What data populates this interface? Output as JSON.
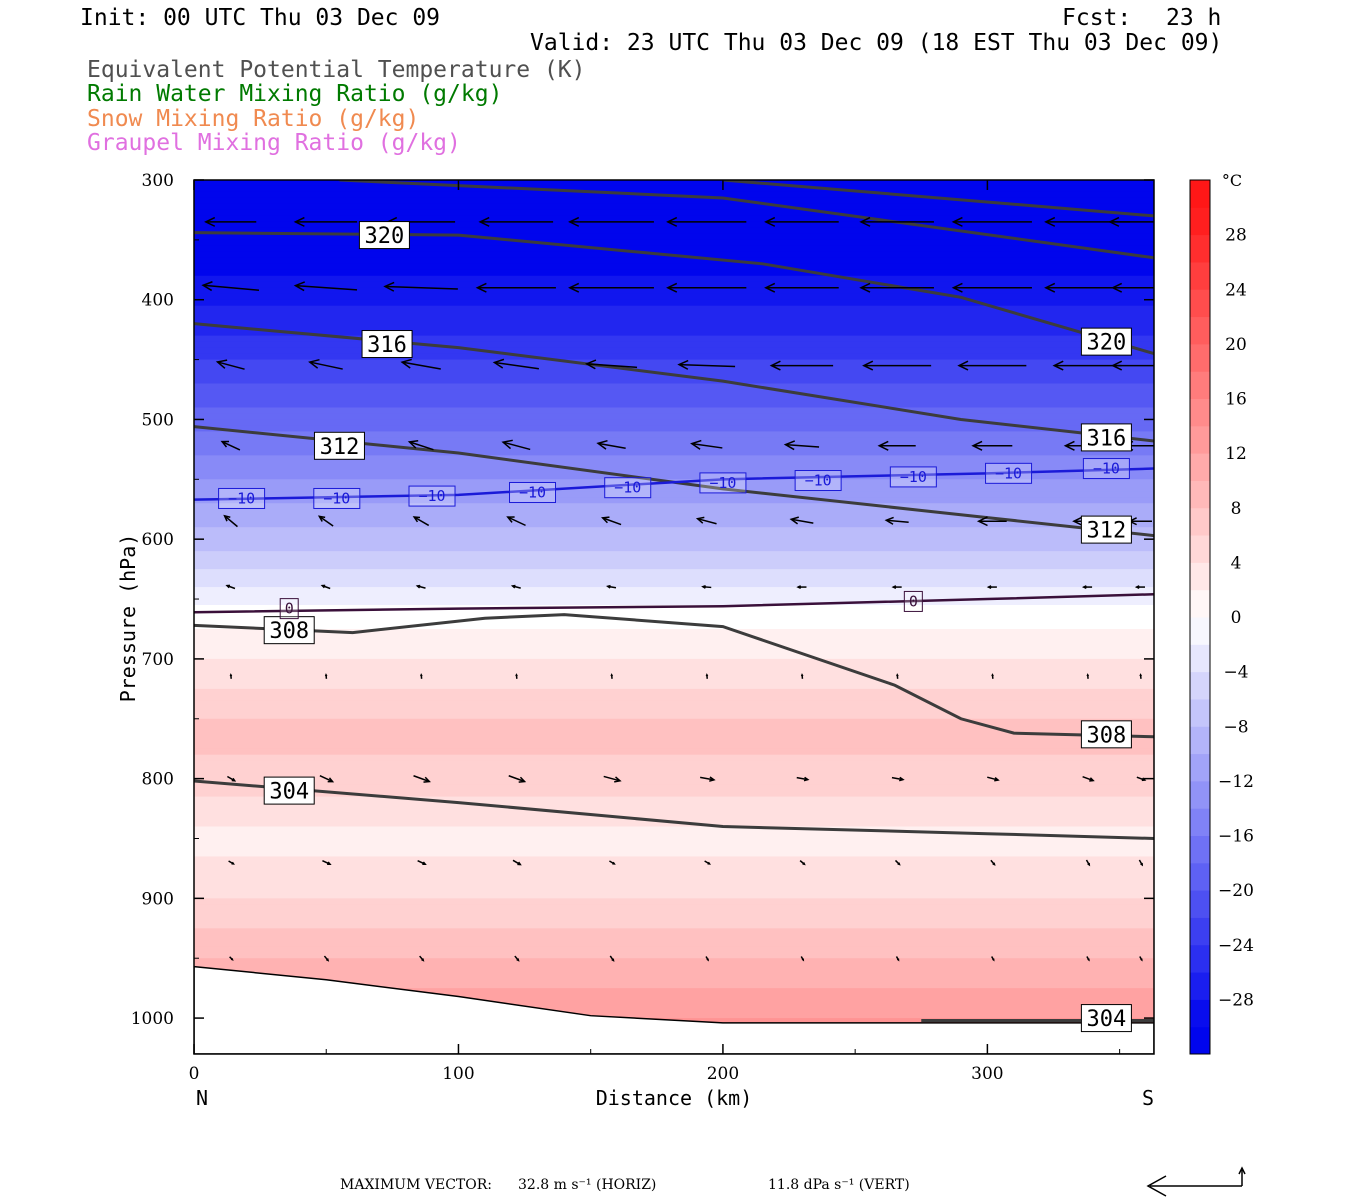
{
  "header": {
    "init": "Init: 00 UTC Thu 03 Dec 09",
    "fcst_label": "Fcst:",
    "fcst_value": "23 h",
    "valid": "Valid: 23 UTC Thu 03 Dec 09 (18 EST Thu 03 Dec 09)"
  },
  "legend": [
    {
      "text": "Equivalent Potential Temperature (K)",
      "color": "#505050"
    },
    {
      "text": "Rain Water Mixing Ratio (g/kg)",
      "color": "#007a00"
    },
    {
      "text": "Snow Mixing Ratio (g/kg)",
      "color": "#f08a50"
    },
    {
      "text": "Graupel Mixing Ratio (g/kg)",
      "color": "#e070e0"
    }
  ],
  "footer": {
    "max_vector_label": "MAXIMUM VECTOR:",
    "horiz": "32.8 m s⁻¹ (HORIZ)",
    "vert": "11.8 dPa s⁻¹ (VERT)"
  },
  "chart_data": {
    "type": "cross-section",
    "xlabel": "Distance (km)",
    "ylabel": "Pressure (hPa)",
    "xlim": [
      0,
      363
    ],
    "ylim": [
      1030,
      300
    ],
    "x_ticks": [
      0,
      100,
      200,
      300
    ],
    "y_ticks": [
      300,
      400,
      500,
      600,
      700,
      800,
      900,
      1000
    ],
    "x_end_labels": {
      "left": "N",
      "right": "S"
    },
    "colorbar": {
      "unit": "°C",
      "levels": [
        -32,
        -30,
        -28,
        -26,
        -24,
        -22,
        -20,
        -18,
        -16,
        -14,
        -12,
        -10,
        -8,
        -6,
        -4,
        -2,
        0,
        2,
        4,
        6,
        8,
        10,
        12,
        14,
        16,
        18,
        20,
        22,
        24,
        26,
        28,
        30,
        32
      ],
      "tick_labels": [
        28,
        24,
        20,
        16,
        12,
        8,
        4,
        0,
        -4,
        -8,
        -12,
        -16,
        -20,
        -24,
        -28
      ]
    },
    "temperature_field": {
      "note_points": "pressure (hPa) vs temperature (°C)",
      "profile_p": [
        300,
        330,
        380,
        430,
        480,
        520,
        560,
        600,
        640,
        660,
        700,
        760,
        800,
        850,
        900,
        950,
        1000
      ],
      "profile_T": [
        -31,
        -31,
        -29,
        -25,
        -20,
        -16,
        -12,
        -8,
        -3,
        0,
        3,
        8,
        6,
        2,
        5,
        9,
        13
      ]
    },
    "theta_e_contours": [
      {
        "label": "320",
        "x": [
          0,
          100,
          215,
          290,
          363
        ],
        "p": [
          344,
          346,
          370,
          398,
          445
        ]
      },
      {
        "label": "320",
        "x": [
          55,
          200,
          363
        ],
        "p": [
          300,
          315,
          365
        ]
      },
      {
        "label": "320",
        "x": [
          200,
          363
        ],
        "p": [
          300,
          330
        ]
      },
      {
        "label": "316",
        "x": [
          0,
          100,
          200,
          290,
          363
        ],
        "p": [
          420,
          440,
          468,
          500,
          518
        ]
      },
      {
        "label": "312",
        "x": [
          0,
          100,
          200,
          300,
          363
        ],
        "p": [
          506,
          528,
          558,
          582,
          597
        ]
      },
      {
        "label": "308",
        "x": [
          0,
          60,
          110,
          140,
          200,
          265,
          290,
          310,
          363
        ],
        "p": [
          672,
          678,
          666,
          663,
          673,
          722,
          750,
          762,
          765
        ]
      },
      {
        "label": "304",
        "x": [
          0,
          100,
          200,
          300,
          363
        ],
        "p": [
          802,
          820,
          840,
          846,
          850
        ]
      },
      {
        "label": "304",
        "x": [
          275,
          363
        ],
        "p": [
          1002,
          1002
        ]
      }
    ],
    "isotherm_contours": [
      {
        "label": "-10",
        "color": "#1a1ad8",
        "x": [
          0,
          100,
          200,
          300,
          363
        ],
        "p": [
          567,
          563,
          550,
          545,
          541
        ]
      },
      {
        "label": "0",
        "color": "#3a103a",
        "x": [
          0,
          100,
          200,
          300,
          363
        ],
        "p": [
          661,
          658,
          656,
          650,
          646
        ]
      }
    ],
    "contour_labels": [
      {
        "text": "320",
        "x": 72,
        "p": 346
      },
      {
        "text": "316",
        "x": 73,
        "p": 437
      },
      {
        "text": "312",
        "x": 55,
        "p": 522
      },
      {
        "text": "308",
        "x": 36,
        "p": 676
      },
      {
        "text": "304",
        "x": 36,
        "p": 810
      },
      {
        "text": "320",
        "x": 345,
        "p": 435
      },
      {
        "text": "316",
        "x": 345,
        "p": 515
      },
      {
        "text": "312",
        "x": 345,
        "p": 592
      },
      {
        "text": "308",
        "x": 345,
        "p": 763
      },
      {
        "text": "304",
        "x": 345,
        "p": 1000
      },
      {
        "text": "-10",
        "x": 18,
        "p": 566
      },
      {
        "text": "-10",
        "x": 54,
        "p": 566
      },
      {
        "text": "-10",
        "x": 90,
        "p": 564
      },
      {
        "text": "-10",
        "x": 128,
        "p": 561
      },
      {
        "text": "-10",
        "x": 164,
        "p": 557
      },
      {
        "text": "-10",
        "x": 200,
        "p": 553
      },
      {
        "text": "-10",
        "x": 236,
        "p": 551
      },
      {
        "text": "-10",
        "x": 272,
        "p": 548
      },
      {
        "text": "-10",
        "x": 308,
        "p": 545
      },
      {
        "text": "-10",
        "x": 345,
        "p": 541
      },
      {
        "text": "0",
        "x": 36,
        "p": 658
      },
      {
        "text": "0",
        "x": 272,
        "p": 652
      }
    ],
    "terrain": {
      "x": [
        0,
        50,
        100,
        150,
        200,
        300,
        363
      ],
      "p": [
        957,
        968,
        982,
        998,
        1004,
        1004,
        1004
      ]
    },
    "wind_vectors": {
      "x": [
        14,
        50,
        86,
        122,
        158,
        194,
        230,
        266,
        302,
        338,
        358
      ],
      "p": [
        335,
        390,
        455,
        522,
        585,
        640,
        715,
        800,
        870,
        950
      ],
      "speed_ms": [
        [
          18,
          22,
          24,
          26,
          30,
          28,
          26,
          26,
          28,
          30,
          22
        ],
        [
          20,
          22,
          26,
          28,
          30,
          28,
          26,
          26,
          28,
          30,
          20
        ],
        [
          10,
          12,
          14,
          16,
          18,
          20,
          22,
          24,
          24,
          24,
          20
        ],
        [
          7,
          8,
          9,
          10,
          10,
          11,
          12,
          13,
          14,
          16,
          12
        ],
        [
          6,
          6,
          6,
          7,
          7,
          7,
          8,
          8,
          10,
          10,
          8
        ],
        [
          3,
          3,
          3,
          3,
          3,
          3,
          3,
          3,
          3,
          3,
          3
        ],
        [
          1,
          1,
          1,
          1,
          1,
          1,
          1,
          1,
          1,
          1,
          1
        ],
        [
          3,
          5,
          6,
          6,
          6,
          5,
          4,
          4,
          4,
          4,
          3
        ],
        [
          2,
          3,
          3,
          3,
          2,
          2,
          2,
          2,
          2,
          2,
          2
        ],
        [
          1,
          2,
          2,
          2,
          2,
          1,
          1,
          1,
          1,
          1,
          1
        ]
      ],
      "direction_deg_from_east": [
        [
          180,
          180,
          180,
          180,
          180,
          180,
          180,
          180,
          180,
          180,
          180
        ],
        [
          175,
          176,
          178,
          180,
          180,
          180,
          180,
          180,
          180,
          180,
          180
        ],
        [
          165,
          168,
          170,
          172,
          176,
          178,
          180,
          180,
          180,
          180,
          180
        ],
        [
          155,
          160,
          162,
          165,
          170,
          172,
          176,
          180,
          180,
          180,
          180
        ],
        [
          140,
          145,
          150,
          155,
          160,
          165,
          170,
          175,
          180,
          180,
          180
        ],
        [
          160,
          160,
          165,
          165,
          170,
          175,
          180,
          180,
          180,
          180,
          180
        ],
        [
          95,
          95,
          95,
          95,
          95,
          95,
          95,
          95,
          95,
          95,
          95
        ],
        [
          -30,
          -25,
          -20,
          -20,
          -15,
          -10,
          -10,
          -10,
          -15,
          -20,
          -20
        ],
        [
          -30,
          -25,
          -25,
          -30,
          -30,
          -30,
          -40,
          -45,
          -50,
          -60,
          -60
        ],
        [
          -45,
          -50,
          -50,
          -50,
          -55,
          -60,
          -60,
          -60,
          -60,
          -60,
          -60
        ]
      ]
    },
    "reference_vector": {
      "horiz_ms": 32.8,
      "vert_dpa": 11.8
    }
  }
}
